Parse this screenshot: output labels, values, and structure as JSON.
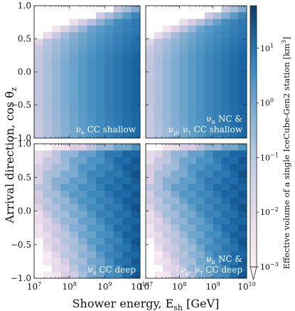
{
  "figure": {
    "y_axis_label": "Arrival direction, cos θ",
    "y_axis_label_sub": "z",
    "x_axis_label": "Shower energy, E",
    "x_axis_label_sub": "sh",
    "x_axis_label_unit": "[GeV]",
    "colorbar_label": "Effective volume of a single IceCube-Gen2 station [km",
    "colorbar_label_sup": "3",
    "colorbar_label_end": "]"
  },
  "chart_data": {
    "type": "heatmap",
    "colormap": [
      "#fdeff4",
      "#dcd0e6",
      "#9fbbd9",
      "#4f96c4",
      "#1c6aa8",
      "#0b3b6b"
    ],
    "colorscale": "log",
    "colorbar_range": [
      0.001,
      60
    ],
    "colorbar_ticks": [
      {
        "value": 0.001,
        "label": "10",
        "exp": "−3"
      },
      {
        "value": 0.01,
        "label": "10",
        "exp": "−2"
      },
      {
        "value": 0.1,
        "label": "10",
        "exp": "−1"
      },
      {
        "value": 1,
        "label": "10",
        "exp": "0"
      },
      {
        "value": 10,
        "label": "10",
        "exp": "1"
      }
    ],
    "x_scale": "log",
    "x_range": [
      10000000,
      10000000000
    ],
    "x_ticks": [
      {
        "value": 10000000,
        "label": "10",
        "exp": "7"
      },
      {
        "value": 100000000,
        "label": "10",
        "exp": "8"
      },
      {
        "value": 1000000000,
        "label": "10",
        "exp": "9"
      },
      {
        "value": 10000000000,
        "label": "10",
        "exp": "10"
      }
    ],
    "y_range": [
      -1.0,
      1.0
    ],
    "y_ticks": [
      1.0,
      0.5,
      0.0,
      -0.5,
      -1.0
    ],
    "y_tick_labels": [
      "1.0",
      "0.5",
      "0.0",
      "−0.5",
      "−1.0"
    ],
    "grid": false,
    "n_energy_bins": 12,
    "n_direction_bins": 20,
    "panels": [
      {
        "id": "top-left",
        "label_line1": "ν",
        "label_line1_sub": "e",
        "label_line1_rest": " CC shallow",
        "label_line2": "",
        "model": {
          "cutoff": 0.72,
          "threshold_cos": 1.0,
          "depth": "shallow"
        }
      },
      {
        "id": "top-right",
        "label_line1": "ν",
        "label_line1_sub": "α",
        "label_line1_rest": " NC &",
        "label_line2": "ν",
        "label_line2_sub": "μ",
        "label_line2_mid": ", ν",
        "label_line2_sub2": "τ",
        "label_line2_rest": " CC shallow",
        "model": {
          "cutoff": 0.72,
          "threshold_cos": 1.0,
          "depth": "shallow"
        }
      },
      {
        "id": "bottom-left",
        "label_line1": "ν",
        "label_line1_sub": "e",
        "label_line1_rest": " CC deep",
        "label_line2": "",
        "model": {
          "cutoff": 0.95,
          "threshold_cos": 0.05,
          "depth": "deep"
        }
      },
      {
        "id": "bottom-right",
        "label_line1": "ν",
        "label_line1_sub": "α",
        "label_line1_rest": " NC &",
        "label_line2": "ν",
        "label_line2_sub": "μ",
        "label_line2_mid": ", ν",
        "label_line2_sub2": "τ",
        "label_line2_rest": " CC deep",
        "model": {
          "cutoff": 0.95,
          "threshold_cos": 0.05,
          "depth": "deep"
        }
      }
    ]
  }
}
